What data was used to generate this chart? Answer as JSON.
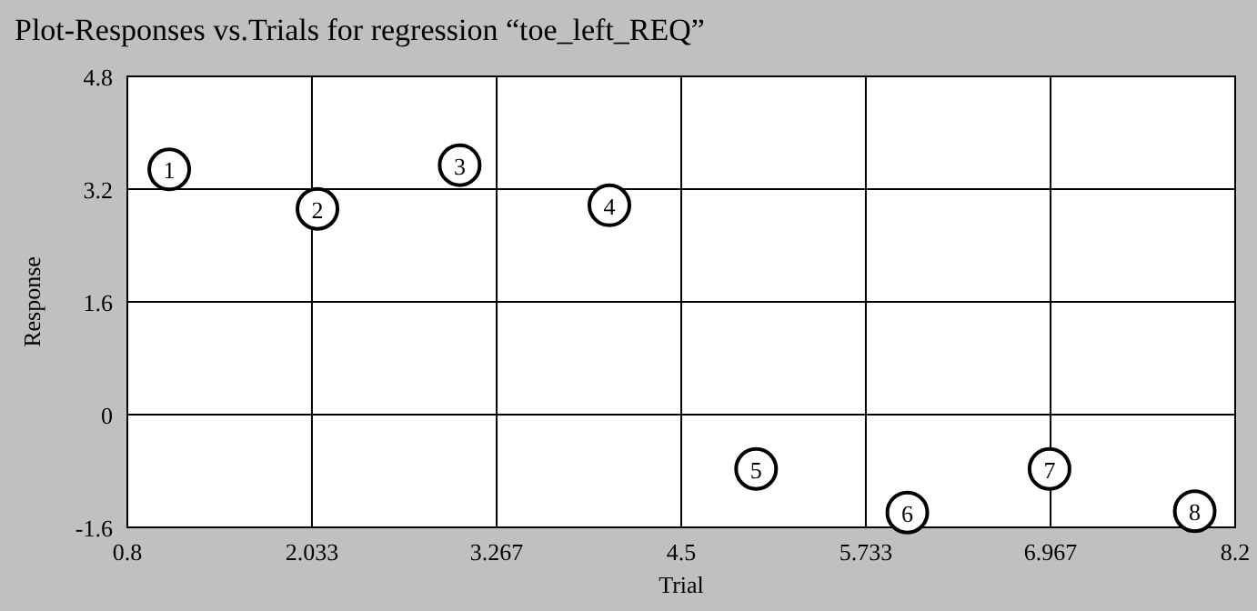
{
  "chart_data": {
    "type": "scatter",
    "title": "Plot-Responses vs.Trials for regression “toe_left_REQ”",
    "xlabel": "Trial",
    "ylabel": "Response",
    "x": [
      1.08,
      2.07,
      3.02,
      4.02,
      5.0,
      6.01,
      6.96,
      7.93
    ],
    "values": [
      3.48,
      2.92,
      3.54,
      2.97,
      -0.77,
      -1.39,
      -0.77,
      -1.37
    ],
    "annotations": [
      {
        "text": "1",
        "x": 1.08,
        "y": 3.48
      },
      {
        "text": "2",
        "x": 2.07,
        "y": 2.92
      },
      {
        "text": "3",
        "x": 3.02,
        "y": 3.54
      },
      {
        "text": "4",
        "x": 4.02,
        "y": 2.97
      },
      {
        "text": "5",
        "x": 5.0,
        "y": -0.77
      },
      {
        "text": "6",
        "x": 6.01,
        "y": -1.39
      },
      {
        "text": "7",
        "x": 6.96,
        "y": -0.77
      },
      {
        "text": "8",
        "x": 7.93,
        "y": -1.37
      }
    ],
    "color": "#000000",
    "marker": "circle",
    "grid": true,
    "xlim": [
      0.8,
      8.2
    ],
    "xticks": [
      0.8,
      2.033,
      3.267,
      4.5,
      5.733,
      6.967,
      8.2
    ],
    "ylim": [
      -1.6,
      4.8
    ],
    "yticks": [
      -1.6,
      0,
      1.6,
      3.2,
      4.8
    ]
  }
}
